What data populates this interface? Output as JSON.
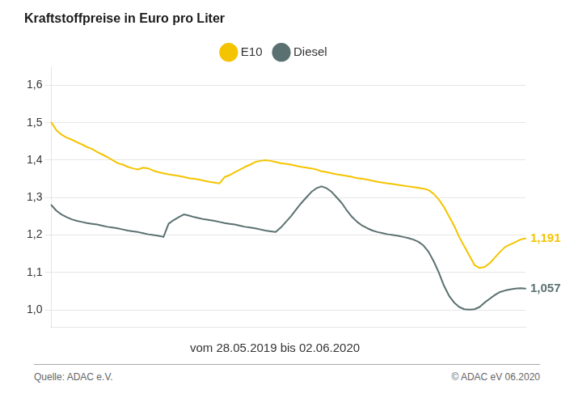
{
  "chart_data": {
    "type": "line",
    "title": "Kraftstoffpreise in Euro pro Liter",
    "subtitle": "vom 28.05.2019 bis 02.06.2020",
    "footer": [
      "Quelle: ADAC e.V.",
      "© ADAC eV  06.2020"
    ],
    "categories": [
      null,
      null,
      null,
      null,
      null,
      null,
      null,
      null,
      null,
      null,
      null,
      null,
      null,
      null,
      null,
      null,
      null,
      null,
      null,
      null,
      null,
      null,
      null,
      null,
      null,
      null,
      null,
      null,
      null,
      null,
      null,
      null,
      null,
      null,
      null,
      null,
      null,
      null,
      null,
      null,
      null,
      null,
      null,
      null,
      null,
      null,
      null,
      null,
      null,
      null,
      null,
      null,
      null,
      null,
      null,
      null,
      null,
      null,
      null,
      null,
      null,
      null,
      null,
      null,
      null,
      null,
      null,
      null,
      null,
      null,
      null,
      null,
      null,
      null,
      null,
      null,
      null,
      null,
      null,
      null,
      null,
      null,
      null,
      null,
      null,
      null,
      null,
      null,
      null,
      null,
      null,
      null,
      null,
      null
    ],
    "series": [
      {
        "name": "E10",
        "color": "#F5C400",
        "values": [
          1.501,
          1.48,
          1.468,
          1.46,
          1.455,
          1.448,
          1.442,
          1.435,
          1.43,
          1.422,
          1.415,
          1.408,
          1.4,
          1.392,
          1.388,
          1.382,
          1.378,
          1.375,
          1.38,
          1.378,
          1.372,
          1.368,
          1.365,
          1.362,
          1.36,
          1.358,
          1.355,
          1.352,
          1.35,
          1.348,
          1.345,
          1.342,
          1.34,
          1.338,
          1.355,
          1.36,
          1.368,
          1.375,
          1.382,
          1.388,
          1.395,
          1.398,
          1.4,
          1.398,
          1.395,
          1.392,
          1.39,
          1.388,
          1.385,
          1.382,
          1.38,
          1.378,
          1.375,
          1.37,
          1.368,
          1.365,
          1.362,
          1.36,
          1.358,
          1.355,
          1.352,
          1.35,
          1.348,
          1.345,
          1.342,
          1.34,
          1.338,
          1.336,
          1.334,
          1.332,
          1.33,
          1.328,
          1.326,
          1.324,
          1.32,
          1.31,
          1.295,
          1.275,
          1.25,
          1.225,
          1.195,
          1.17,
          1.145,
          1.12,
          1.112,
          1.115,
          1.125,
          1.14,
          1.155,
          1.168,
          1.175,
          1.181,
          1.188,
          1.191
        ]
      },
      {
        "name": "Diesel",
        "color": "#5B7070",
        "values": [
          1.28,
          1.265,
          1.255,
          1.248,
          1.242,
          1.238,
          1.235,
          1.232,
          1.23,
          1.228,
          1.225,
          1.222,
          1.22,
          1.218,
          1.215,
          1.212,
          1.21,
          1.208,
          1.205,
          1.202,
          1.2,
          1.198,
          1.195,
          1.23,
          1.24,
          1.248,
          1.255,
          1.252,
          1.248,
          1.245,
          1.242,
          1.24,
          1.238,
          1.235,
          1.232,
          1.23,
          1.228,
          1.225,
          1.222,
          1.22,
          1.218,
          1.215,
          1.212,
          1.21,
          1.208,
          1.22,
          1.235,
          1.25,
          1.268,
          1.285,
          1.3,
          1.315,
          1.325,
          1.33,
          1.325,
          1.315,
          1.3,
          1.285,
          1.265,
          1.248,
          1.235,
          1.225,
          1.218,
          1.212,
          1.208,
          1.205,
          1.202,
          1.2,
          1.198,
          1.195,
          1.192,
          1.188,
          1.182,
          1.172,
          1.155,
          1.13,
          1.1,
          1.065,
          1.038,
          1.02,
          1.008,
          1.002,
          1.001,
          1.002,
          1.008,
          1.02,
          1.03,
          1.04,
          1.048,
          1.052,
          1.055,
          1.057,
          1.058,
          1.057
        ]
      }
    ],
    "ylim": [
      0.955,
      1.65
    ],
    "yticks": [
      {
        "value": 1.0,
        "label": "1,0"
      },
      {
        "value": 1.1,
        "label": "1,1"
      },
      {
        "value": 1.2,
        "label": "1,2"
      },
      {
        "value": 1.3,
        "label": "1,3"
      },
      {
        "value": 1.4,
        "label": "1,4"
      },
      {
        "value": 1.5,
        "label": "1,5"
      },
      {
        "value": 1.6,
        "label": "1,6"
      }
    ],
    "grid": true,
    "legend": "top",
    "tick_labels": "y",
    "annotations": [
      {
        "text": "1,191",
        "series": "E10"
      },
      {
        "text": "1,057",
        "series": "Diesel"
      }
    ]
  }
}
